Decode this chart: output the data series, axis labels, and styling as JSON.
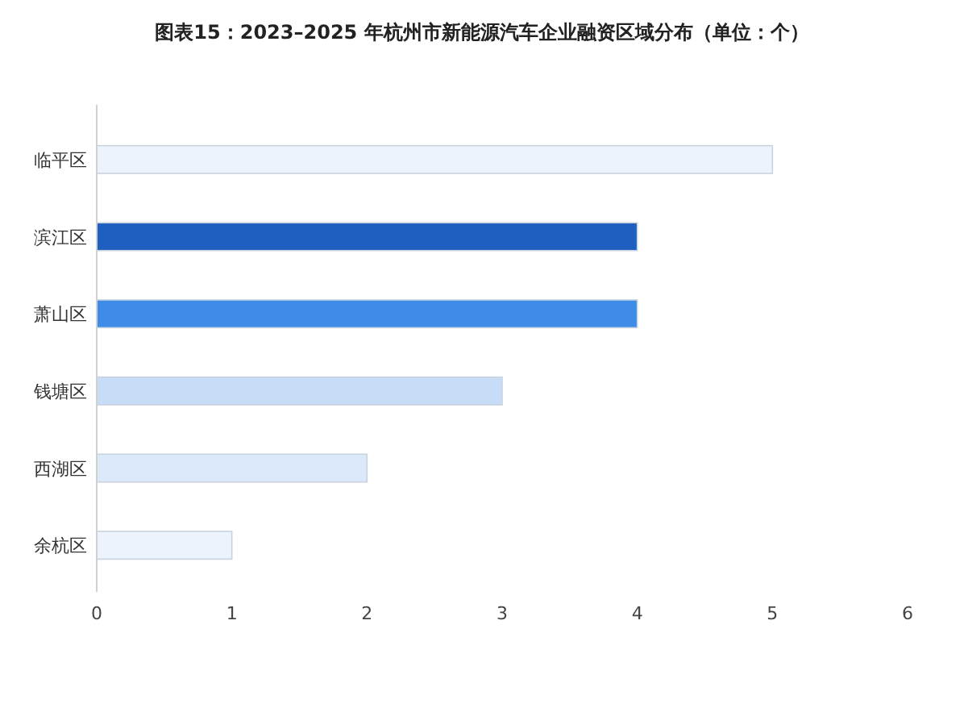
{
  "chart_data": {
    "type": "bar",
    "orientation": "horizontal",
    "title": "图表15：2023–2025 年杭州市新能源汽车企业融资区域分布（单位：个）",
    "categories": [
      "临平区",
      "滨江区",
      "萧山区",
      "钱塘区",
      "西湖区",
      "余杭区"
    ],
    "values": [
      5,
      4,
      4,
      3,
      2,
      1
    ],
    "colors": [
      "#edf3fb",
      "#1f5fbf",
      "#3f8be8",
      "#c6dcf7",
      "#dce9fa",
      "#ecf3fc"
    ],
    "xlim": [
      0,
      6
    ],
    "xticks": [
      0,
      1,
      2,
      3,
      4,
      5,
      6
    ]
  }
}
